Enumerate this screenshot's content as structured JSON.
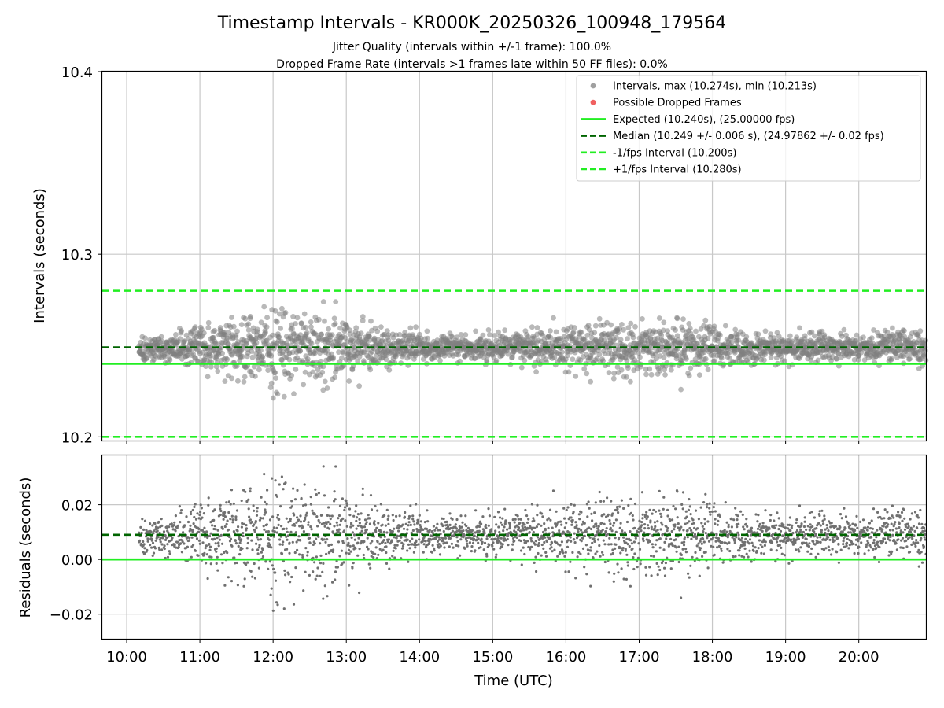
{
  "figure": {
    "title": "Timestamp Intervals - KR000K_20250326_100948_179564",
    "subtitle_1": "Jitter Quality (intervals within +/-1 frame): 100.0%",
    "subtitle_2": "Dropped Frame Rate (intervals >1 frames late within 50 FF files): 0.0%"
  },
  "chart_data": [
    {
      "type": "scatter",
      "panel": "intervals",
      "title": "Timestamp Intervals - KR000K_20250326_100948_179564",
      "xlabel": "",
      "ylabel": "Intervals (seconds)",
      "xlim": [
        "09:40",
        "20:55"
      ],
      "ylim": [
        10.198,
        10.4
      ],
      "yticks": [
        "10.2",
        "10.3",
        "10.4"
      ],
      "grid": true,
      "legend_position": "top-right",
      "series_style": {
        "intervals_color": "#808080",
        "dropped_color": "#f06060",
        "expected_color": "#22ee22",
        "median_color": "#006400",
        "interval_bound_color": "#22ee22"
      },
      "legend": [
        {
          "label": "Intervals, max (10.274s), min (10.213s)",
          "kind": "marker",
          "color": "#a0a0a0"
        },
        {
          "label": "Possible Dropped Frames",
          "kind": "marker",
          "color": "#f06060"
        },
        {
          "label": "Expected (10.240s), (25.00000 fps)",
          "kind": "line",
          "color": "#22ee22"
        },
        {
          "label": "Median (10.249 +/- 0.006 s), (24.97862 +/- 0.02 fps)",
          "kind": "dashed",
          "color": "#006400"
        },
        {
          "label": "-1/fps Interval (10.200s)",
          "kind": "dashed",
          "color": "#22ee22"
        },
        {
          "label": "+1/fps Interval (10.280s)",
          "kind": "dashed",
          "color": "#22ee22"
        }
      ],
      "reference_lines": {
        "expected": 10.24,
        "median": 10.249,
        "minus_1fps": 10.2,
        "plus_1fps": 10.28
      },
      "stats": {
        "max": 10.274,
        "min": 10.213,
        "points_start": "10:10",
        "points_end": "20:55"
      },
      "envelope": [
        {
          "t": "10:10",
          "sd": 0.004
        },
        {
          "t": "10:30",
          "sd": 0.004
        },
        {
          "t": "11:00",
          "sd": 0.006
        },
        {
          "t": "11:30",
          "sd": 0.009
        },
        {
          "t": "12:00",
          "sd": 0.011
        },
        {
          "t": "12:30",
          "sd": 0.012
        },
        {
          "t": "13:00",
          "sd": 0.009
        },
        {
          "t": "13:30",
          "sd": 0.006
        },
        {
          "t": "14:00",
          "sd": 0.004
        },
        {
          "t": "15:00",
          "sd": 0.004
        },
        {
          "t": "15:30",
          "sd": 0.005
        },
        {
          "t": "16:00",
          "sd": 0.006
        },
        {
          "t": "16:30",
          "sd": 0.007
        },
        {
          "t": "17:00",
          "sd": 0.008
        },
        {
          "t": "17:30",
          "sd": 0.009
        },
        {
          "t": "18:00",
          "sd": 0.007
        },
        {
          "t": "18:30",
          "sd": 0.005
        },
        {
          "t": "19:00",
          "sd": 0.004
        },
        {
          "t": "20:00",
          "sd": 0.004
        },
        {
          "t": "20:55",
          "sd": 0.006
        }
      ]
    },
    {
      "type": "scatter",
      "panel": "residuals",
      "xlabel": "Time (UTC)",
      "ylabel": "Residuals (seconds)",
      "xlim": [
        "09:40",
        "20:55"
      ],
      "ylim": [
        -0.029,
        0.038
      ],
      "yticks": [
        "−0.02",
        "0.00",
        "0.02"
      ],
      "ytick_values": [
        -0.02,
        0.0,
        0.02
      ],
      "xticks": [
        "10:00",
        "11:00",
        "12:00",
        "13:00",
        "14:00",
        "15:00",
        "16:00",
        "17:00",
        "18:00",
        "19:00",
        "20:00"
      ],
      "grid": true,
      "reference_lines": {
        "zero": 0.0,
        "median_residual": 0.009
      }
    }
  ]
}
